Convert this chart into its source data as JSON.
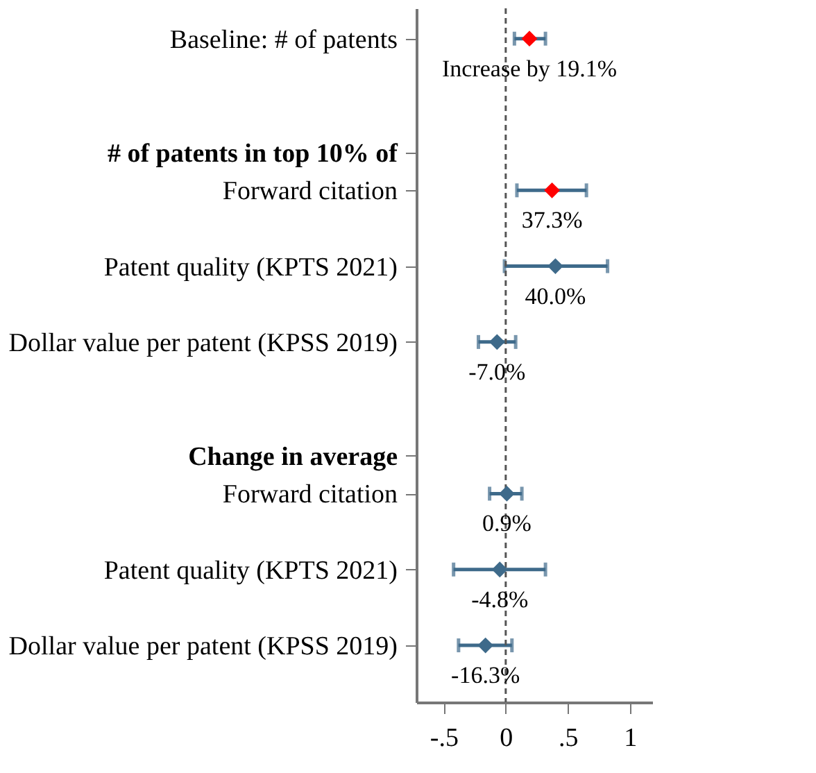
{
  "chart_data": {
    "type": "scatter",
    "orientation": "horizontal",
    "categories": [
      "Baseline: # of patents",
      null,
      null,
      "# of patents in top 10% of",
      "Forward citation",
      null,
      "Patent quality (KPTS 2021)",
      null,
      "Dollar value per patent (KPSS 2019)",
      null,
      null,
      "Change in average",
      "Forward citation",
      null,
      "Patent quality (KPTS 2021)",
      null,
      "Dollar value per patent (KPSS 2019)"
    ],
    "series": [
      {
        "color": "#3e6a8a",
        "values": [
          0.191,
          null,
          null,
          null,
          0.373,
          null,
          0.4,
          null,
          -0.07,
          null,
          null,
          null,
          0.009,
          null,
          -0.048,
          null,
          -0.163
        ],
        "colors": [
          "#ff0000",
          null,
          null,
          null,
          "#ff0000",
          null,
          "#3e6a8a",
          null,
          "#3e6a8a",
          null,
          null,
          null,
          "#3e6a8a",
          null,
          "#3e6a8a",
          null,
          "#3e6a8a"
        ],
        "errors": [
          [
            0.07,
            0.32
          ],
          null,
          null,
          null,
          [
            0.09,
            0.65
          ],
          null,
          [
            -0.01,
            0.82
          ],
          null,
          [
            -0.22,
            0.08
          ],
          null,
          null,
          null,
          [
            -0.13,
            0.13
          ],
          null,
          [
            -0.42,
            0.32
          ],
          null,
          [
            -0.38,
            0.05
          ]
        ],
        "value_labels": [
          "Increase by 19.1%",
          null,
          null,
          null,
          "37.3%",
          null,
          "40.0%",
          null,
          "-7.0%",
          null,
          null,
          null,
          "0.9%",
          null,
          "-4.8%",
          null,
          "-16.3%"
        ]
      }
    ],
    "xlim": [
      -0.72,
      1.18
    ],
    "xticks": [
      {
        "value": -0.5,
        "label": "-.5"
      },
      0,
      {
        "value": 0.5,
        "label": ".5"
      },
      1
    ],
    "marker": "diamond",
    "ref_lines": [
      {
        "axis": "x",
        "value": 0,
        "line_style": "dashed",
        "color": "#555555"
      }
    ],
    "grid": false
  }
}
